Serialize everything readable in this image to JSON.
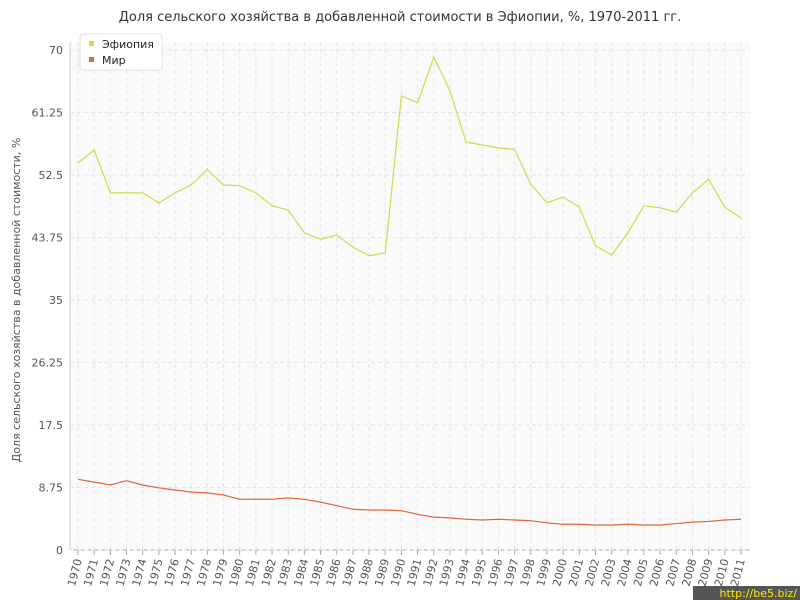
{
  "chart_data": {
    "type": "line",
    "title": "Доля сельского хозяйства в добавленной стоимости в Эфиопии, %, 1970-2011 гг.",
    "y_label": "Доля сельского хозяйства в добавленной стоимости, %",
    "categories": [
      "1970",
      "1971",
      "1972",
      "1973",
      "1974",
      "1975",
      "1976",
      "1977",
      "1978",
      "1979",
      "1980",
      "1981",
      "1982",
      "1983",
      "1984",
      "1985",
      "1986",
      "1987",
      "1988",
      "1989",
      "1990",
      "1991",
      "1992",
      "1993",
      "1994",
      "1995",
      "1996",
      "1997",
      "1998",
      "1999",
      "2000",
      "2001",
      "2002",
      "2003",
      "2004",
      "2005",
      "2006",
      "2007",
      "2008",
      "2009",
      "2010",
      "2011"
    ],
    "series": [
      {
        "name": "Эфиопия",
        "color": "#c5e04b",
        "values": [
          54.2,
          56.0,
          50.0,
          50.0,
          50.0,
          48.6,
          50.0,
          51.1,
          53.3,
          51.1,
          51.0,
          50.0,
          48.2,
          47.6,
          44.4,
          43.5,
          44.1,
          42.4,
          41.2,
          41.6,
          63.6,
          62.6,
          69.0,
          64.3,
          57.1,
          56.7,
          56.3,
          56.1,
          51.2,
          48.6,
          49.4,
          48.0,
          42.6,
          41.3,
          44.4,
          48.2,
          47.9,
          47.3,
          50.0,
          51.9,
          48.0,
          46.5
        ]
      },
      {
        "name": "Мир",
        "color": "#e0683a",
        "values": [
          9.9,
          9.5,
          9.1,
          9.7,
          9.1,
          8.7,
          8.4,
          8.1,
          8.0,
          7.7,
          7.1,
          7.1,
          7.1,
          7.3,
          7.1,
          6.7,
          6.2,
          5.7,
          5.6,
          5.6,
          5.5,
          5.0,
          4.6,
          4.5,
          4.3,
          4.2,
          4.3,
          4.2,
          4.1,
          3.8,
          3.6,
          3.6,
          3.5,
          3.5,
          3.6,
          3.5,
          3.5,
          3.7,
          3.9,
          4.0,
          4.2,
          4.3
        ]
      }
    ],
    "ylim": [
      0,
      70
    ],
    "yticks": [
      0,
      8.75,
      17.5,
      26.25,
      35,
      43.75,
      52.5,
      61.25,
      70
    ],
    "grid": true,
    "legend": "top-left",
    "watermark": "http://be5.biz/"
  }
}
